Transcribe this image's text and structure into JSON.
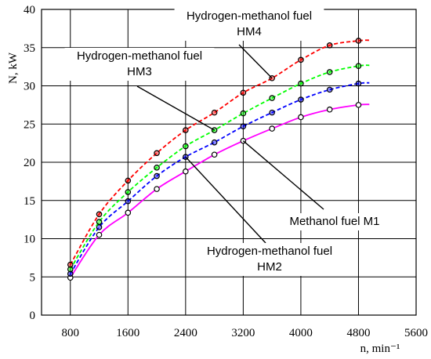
{
  "chart_data": {
    "type": "line",
    "title": "",
    "xlabel": "n, min⁻¹",
    "ylabel": "N, kW",
    "xlim": [
      400,
      5600
    ],
    "ylim": [
      0,
      40
    ],
    "x_ticks": [
      800,
      1600,
      2400,
      3200,
      4000,
      4800,
      5600
    ],
    "y_ticks": [
      0,
      5,
      10,
      15,
      20,
      25,
      30,
      35,
      40
    ],
    "grid": true,
    "legend": "none",
    "series": [
      {
        "name": "Methanol fuel M1",
        "color": "#ff00ff",
        "line_style": "solid",
        "points": [
          {
            "x": 800,
            "y": 4.9
          },
          {
            "x": 1200,
            "y": 10.5
          },
          {
            "x": 1600,
            "y": 13.4
          },
          {
            "x": 2000,
            "y": 16.5
          },
          {
            "x": 2400,
            "y": 18.8
          },
          {
            "x": 2800,
            "y": 21.0
          },
          {
            "x": 3200,
            "y": 22.8
          },
          {
            "x": 3600,
            "y": 24.4
          },
          {
            "x": 4000,
            "y": 25.9
          },
          {
            "x": 4400,
            "y": 26.9
          },
          {
            "x": 4800,
            "y": 27.5
          }
        ]
      },
      {
        "name": "Hydrogen-methanol fuel HM2",
        "color": "#0000ff",
        "line_style": "dashed",
        "points": [
          {
            "x": 800,
            "y": 5.4
          },
          {
            "x": 1200,
            "y": 11.5
          },
          {
            "x": 1600,
            "y": 14.9
          },
          {
            "x": 2000,
            "y": 18.2
          },
          {
            "x": 2400,
            "y": 20.7
          },
          {
            "x": 2800,
            "y": 22.6
          },
          {
            "x": 3200,
            "y": 24.7
          },
          {
            "x": 3600,
            "y": 26.5
          },
          {
            "x": 4000,
            "y": 28.2
          },
          {
            "x": 4400,
            "y": 29.5
          },
          {
            "x": 4800,
            "y": 30.3
          }
        ]
      },
      {
        "name": "Hydrogen-methanol fuel HM3",
        "color": "#00ff00",
        "line_style": "dashed",
        "points": [
          {
            "x": 800,
            "y": 6.0
          },
          {
            "x": 1200,
            "y": 12.2
          },
          {
            "x": 1600,
            "y": 16.1
          },
          {
            "x": 2000,
            "y": 19.3
          },
          {
            "x": 2400,
            "y": 22.1
          },
          {
            "x": 2800,
            "y": 24.2
          },
          {
            "x": 3200,
            "y": 26.4
          },
          {
            "x": 3600,
            "y": 28.4
          },
          {
            "x": 4000,
            "y": 30.3
          },
          {
            "x": 4400,
            "y": 31.8
          },
          {
            "x": 4800,
            "y": 32.6
          }
        ]
      },
      {
        "name": "Hydrogen-methanol fuel HM4",
        "color": "#ff0000",
        "line_style": "dashed",
        "points": [
          {
            "x": 800,
            "y": 6.6
          },
          {
            "x": 1200,
            "y": 13.2
          },
          {
            "x": 1600,
            "y": 17.6
          },
          {
            "x": 2000,
            "y": 21.2
          },
          {
            "x": 2400,
            "y": 24.2
          },
          {
            "x": 2800,
            "y": 26.5
          },
          {
            "x": 3200,
            "y": 29.1
          },
          {
            "x": 3600,
            "y": 31.0
          },
          {
            "x": 4000,
            "y": 33.4
          },
          {
            "x": 4400,
            "y": 35.3
          },
          {
            "x": 4800,
            "y": 35.9
          }
        ]
      }
    ],
    "annotations": [
      {
        "line1": "Hydrogen-methanol fuel",
        "line2": "HM4",
        "target_series": 3,
        "target_x": 3600
      },
      {
        "line1": "Hydrogen-methanol fuel",
        "line2": "HM3",
        "target_series": 2,
        "target_x": 2800
      },
      {
        "line1": "Methanol fuel M1",
        "line2": "",
        "target_series": 0,
        "target_x": 3200
      },
      {
        "line1": "Hydrogen-methanol fuel",
        "line2": "HM2",
        "target_series": 1,
        "target_x": 2400
      }
    ]
  }
}
